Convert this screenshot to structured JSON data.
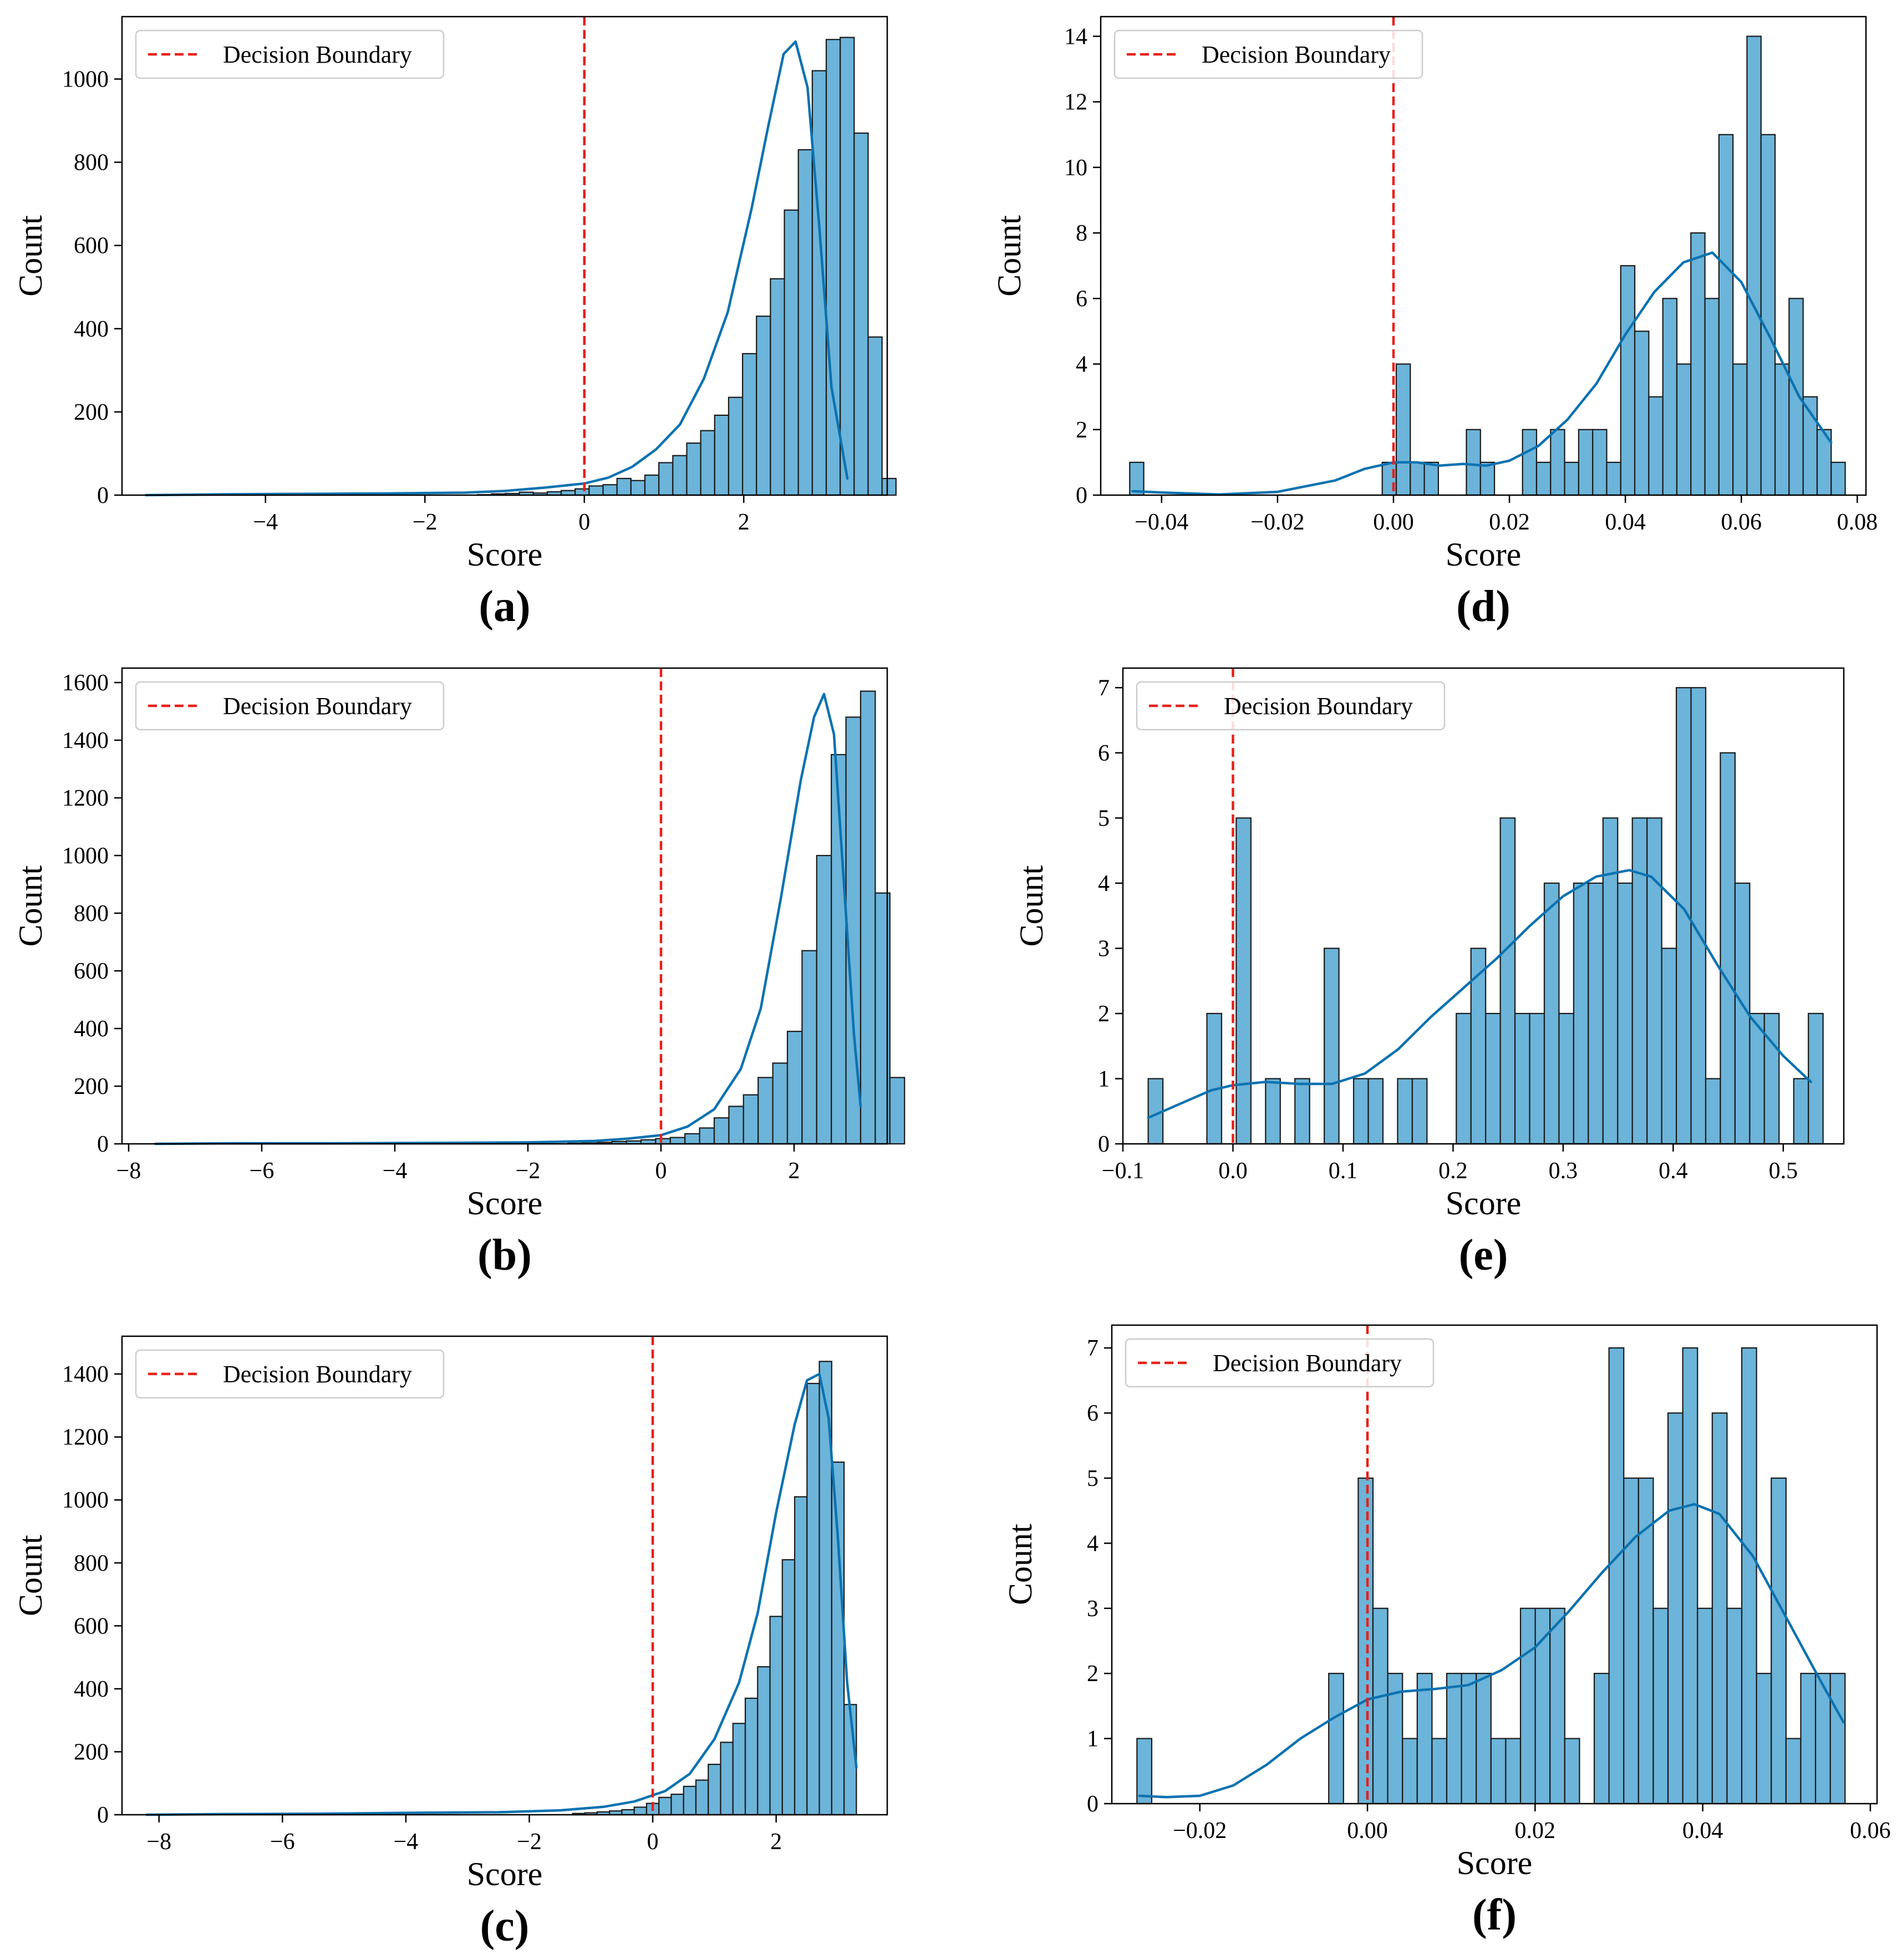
{
  "colors": {
    "bar_fill": "#6cb4d9",
    "bar_edge": "#1a1a1a",
    "kde": "#0b72b0",
    "boundary": "#e8201a",
    "legend_edge": "#cccccc"
  },
  "chart_data": [
    {
      "id": "a",
      "type": "bar",
      "caption": "(a)",
      "xlabel": "Score",
      "ylabel": "Count",
      "xlim": [
        -5.8,
        3.8
      ],
      "ylim": [
        0,
        1150
      ],
      "xticks": [
        -4,
        -2,
        0,
        2
      ],
      "xtick_labels": [
        "−4",
        "−2",
        "0",
        "2"
      ],
      "yticks": [
        0,
        200,
        400,
        600,
        800,
        1000
      ],
      "ytick_labels": [
        "0",
        "200",
        "400",
        "600",
        "800",
        "1000"
      ],
      "boundary_x": 0,
      "legend": "Decision Boundary",
      "legend_position": "top-left",
      "bin_start": -1.34,
      "bin_width": 0.175,
      "counts": [
        1,
        3,
        4,
        7,
        5,
        8,
        11,
        15,
        22,
        25,
        40,
        35,
        48,
        78,
        95,
        125,
        155,
        192,
        235,
        340,
        430,
        520,
        685,
        830,
        1020,
        1095,
        1100,
        870,
        380,
        40
      ],
      "kde_x": [
        -5.5,
        -4.5,
        -3.5,
        -2.5,
        -1.5,
        -1.0,
        -0.5,
        0.0,
        0.3,
        0.6,
        0.9,
        1.2,
        1.5,
        1.8,
        2.1,
        2.3,
        2.5,
        2.65,
        2.8,
        2.95,
        3.1,
        3.3
      ],
      "kde_y": [
        0,
        2,
        3,
        4,
        6,
        10,
        18,
        28,
        42,
        68,
        110,
        170,
        280,
        440,
        690,
        880,
        1060,
        1090,
        980,
        640,
        260,
        40
      ]
    },
    {
      "id": "b",
      "type": "bar",
      "caption": "(b)",
      "xlabel": "Score",
      "ylabel": "Count",
      "xlim": [
        -8.1,
        3.4
      ],
      "ylim": [
        0,
        1650
      ],
      "xticks": [
        -8,
        -6,
        -4,
        -2,
        0,
        2
      ],
      "xtick_labels": [
        "−8",
        "−6",
        "−4",
        "−2",
        "0",
        "2"
      ],
      "yticks": [
        0,
        200,
        400,
        600,
        800,
        1000,
        1200,
        1400,
        1600
      ],
      "ytick_labels": [
        "0",
        "200",
        "400",
        "600",
        "800",
        "1000",
        "1200",
        "1400",
        "1600"
      ],
      "boundary_x": 0,
      "legend": "Decision Boundary",
      "legend_position": "top-left",
      "bin_start": -1.4,
      "bin_width": 0.22,
      "counts": [
        2,
        3,
        5,
        8,
        10,
        14,
        18,
        22,
        35,
        55,
        90,
        130,
        170,
        230,
        280,
        390,
        670,
        1000,
        1350,
        1480,
        1570,
        870,
        230
      ],
      "kde_x": [
        -7.6,
        -6.5,
        -5.0,
        -3.5,
        -2.0,
        -1.0,
        -0.5,
        0.0,
        0.4,
        0.8,
        1.2,
        1.5,
        1.8,
        2.1,
        2.3,
        2.45,
        2.6,
        2.75,
        2.9,
        3.0
      ],
      "kde_y": [
        0,
        2,
        2,
        3,
        5,
        10,
        18,
        30,
        60,
        120,
        260,
        470,
        850,
        1260,
        1480,
        1560,
        1420,
        900,
        380,
        130
      ]
    },
    {
      "id": "c",
      "type": "bar",
      "caption": "(c)",
      "xlabel": "Score",
      "ylabel": "Count",
      "xlim": [
        -8.6,
        3.8
      ],
      "ylim": [
        0,
        1520
      ],
      "xticks": [
        -8,
        -6,
        -4,
        -2,
        0,
        2
      ],
      "xtick_labels": [
        "−8",
        "−6",
        "−4",
        "−2",
        "0",
        "2"
      ],
      "yticks": [
        0,
        200,
        400,
        600,
        800,
        1000,
        1200,
        1400
      ],
      "ytick_labels": [
        "0",
        "200",
        "400",
        "600",
        "800",
        "1000",
        "1200",
        "1400"
      ],
      "boundary_x": 0,
      "legend": "Decision Boundary",
      "legend_position": "top-left",
      "bin_start": -1.3,
      "bin_width": 0.2,
      "counts": [
        4,
        6,
        9,
        12,
        16,
        24,
        36,
        55,
        65,
        90,
        110,
        160,
        230,
        290,
        370,
        470,
        630,
        810,
        1010,
        1370,
        1440,
        1120,
        350
      ],
      "kde_x": [
        -8.2,
        -7.0,
        -5.5,
        -4.0,
        -2.5,
        -1.5,
        -0.8,
        -0.3,
        0.2,
        0.6,
        1.0,
        1.4,
        1.7,
        2.0,
        2.3,
        2.5,
        2.7,
        2.85,
        3.0,
        3.15,
        3.3
      ],
      "kde_y": [
        0,
        2,
        3,
        6,
        8,
        14,
        25,
        42,
        75,
        130,
        240,
        420,
        640,
        960,
        1240,
        1380,
        1400,
        1260,
        880,
        420,
        150
      ]
    },
    {
      "id": "d",
      "type": "bar",
      "caption": "(d)",
      "xlabel": "Score",
      "ylabel": "Count",
      "xlim": [
        -0.0505,
        0.0815
      ],
      "ylim": [
        0,
        14.6
      ],
      "xticks": [
        -0.04,
        -0.02,
        0.0,
        0.02,
        0.04,
        0.06,
        0.08
      ],
      "xtick_labels": [
        "−0.04",
        "−0.02",
        "0.00",
        "0.02",
        "0.04",
        "0.06",
        "0.08"
      ],
      "yticks": [
        0,
        2,
        4,
        6,
        8,
        10,
        12,
        14
      ],
      "ytick_labels": [
        "0",
        "2",
        "4",
        "6",
        "8",
        "10",
        "12",
        "14"
      ],
      "boundary_x": 0,
      "legend": "Decision Boundary",
      "legend_position": "top-left",
      "bin_start": -0.0455,
      "bin_width": 0.00242,
      "counts": [
        1,
        0,
        0,
        0,
        0,
        0,
        0,
        0,
        0,
        0,
        0,
        0,
        0,
        0,
        0,
        0,
        0,
        0,
        1,
        4,
        1,
        1,
        0,
        0,
        2,
        1,
        0,
        0,
        2,
        1,
        2,
        1,
        2,
        2,
        1,
        7,
        5,
        3,
        6,
        4,
        8,
        6,
        11,
        4,
        14,
        11,
        4,
        6,
        3,
        2,
        1
      ],
      "kde_x": [
        -0.045,
        -0.04,
        -0.03,
        -0.02,
        -0.01,
        -0.005,
        0.0,
        0.004,
        0.008,
        0.012,
        0.016,
        0.02,
        0.025,
        0.03,
        0.035,
        0.04,
        0.045,
        0.05,
        0.055,
        0.06,
        0.065,
        0.07,
        0.0755
      ],
      "kde_y": [
        0.12,
        0.08,
        0.02,
        0.1,
        0.45,
        0.8,
        1.0,
        1.0,
        0.9,
        0.95,
        0.9,
        1.05,
        1.5,
        2.3,
        3.4,
        4.9,
        6.2,
        7.1,
        7.4,
        6.5,
        4.8,
        3.0,
        1.6
      ]
    },
    {
      "id": "e",
      "type": "bar",
      "caption": "(e)",
      "xlabel": "Score",
      "ylabel": "Count",
      "xlim": [
        -0.1,
        0.555
      ],
      "ylim": [
        0,
        7.3
      ],
      "xticks": [
        -0.1,
        0.0,
        0.1,
        0.2,
        0.3,
        0.4,
        0.5
      ],
      "xtick_labels": [
        "−0.1",
        "0.0",
        "0.1",
        "0.2",
        "0.3",
        "0.4",
        "0.5"
      ],
      "yticks": [
        0,
        1,
        2,
        3,
        4,
        5,
        6,
        7
      ],
      "ytick_labels": [
        "0",
        "1",
        "2",
        "3",
        "4",
        "5",
        "6",
        "7"
      ],
      "boundary_x": 0,
      "legend": "Decision Boundary",
      "legend_position": "top-left",
      "bin_start": -0.077,
      "bin_width": 0.01333,
      "counts": [
        1,
        0,
        0,
        0,
        2,
        0,
        5,
        0,
        1,
        0,
        1,
        0,
        3,
        0,
        1,
        1,
        0,
        1,
        1,
        0,
        0,
        2,
        3,
        2,
        5,
        2,
        2,
        4,
        2,
        4,
        4,
        5,
        4,
        5,
        5,
        3,
        7,
        7,
        1,
        6,
        4,
        2,
        2,
        0,
        1,
        2
      ],
      "kde_x": [
        -0.077,
        -0.05,
        -0.02,
        0.0,
        0.03,
        0.06,
        0.09,
        0.12,
        0.15,
        0.18,
        0.21,
        0.24,
        0.27,
        0.3,
        0.33,
        0.36,
        0.38,
        0.41,
        0.44,
        0.47,
        0.5,
        0.525
      ],
      "kde_y": [
        0.4,
        0.6,
        0.82,
        0.9,
        0.95,
        0.92,
        0.92,
        1.08,
        1.45,
        1.95,
        2.4,
        2.85,
        3.35,
        3.8,
        4.1,
        4.2,
        4.1,
        3.6,
        2.75,
        1.95,
        1.35,
        0.95
      ]
    },
    {
      "id": "f",
      "type": "bar",
      "caption": "(f)",
      "xlabel": "Score",
      "ylabel": "Count",
      "xlim": [
        -0.0305,
        0.0608
      ],
      "ylim": [
        0,
        7.35
      ],
      "xticks": [
        -0.02,
        0.0,
        0.02,
        0.04,
        0.06
      ],
      "xtick_labels": [
        "−0.02",
        "0.00",
        "0.02",
        "0.04",
        "0.06"
      ],
      "yticks": [
        0,
        1,
        2,
        3,
        4,
        5,
        6,
        7
      ],
      "ytick_labels": [
        "0",
        "1",
        "2",
        "3",
        "4",
        "5",
        "6",
        "7"
      ],
      "boundary_x": 0,
      "legend": "Decision Boundary",
      "legend_position": "top-left",
      "bin_start": -0.0275,
      "bin_width": 0.00176,
      "counts": [
        1,
        0,
        0,
        0,
        0,
        0,
        0,
        0,
        0,
        0,
        0,
        0,
        0,
        2,
        0,
        5,
        3,
        2,
        1,
        2,
        1,
        2,
        2,
        2,
        1,
        1,
        3,
        3,
        3,
        1,
        0,
        2,
        7,
        5,
        5,
        3,
        6,
        7,
        3,
        6,
        3,
        7,
        2,
        5,
        1,
        2,
        2,
        2
      ],
      "kde_x": [
        -0.0272,
        -0.024,
        -0.02,
        -0.016,
        -0.012,
        -0.008,
        -0.004,
        0.0,
        0.004,
        0.008,
        0.012,
        0.016,
        0.02,
        0.024,
        0.028,
        0.032,
        0.036,
        0.039,
        0.042,
        0.046,
        0.05,
        0.054,
        0.0568
      ],
      "kde_y": [
        0.12,
        0.1,
        0.12,
        0.28,
        0.6,
        1.0,
        1.32,
        1.6,
        1.72,
        1.76,
        1.82,
        2.05,
        2.4,
        2.95,
        3.55,
        4.1,
        4.5,
        4.6,
        4.45,
        3.8,
        2.85,
        1.9,
        1.25
      ]
    }
  ]
}
